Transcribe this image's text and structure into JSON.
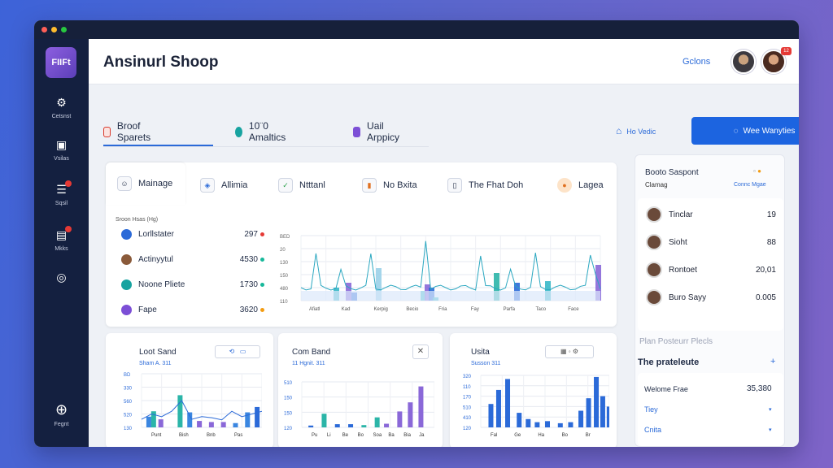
{
  "app": {
    "logo": "FIIFt",
    "title": "Ansinurl Shoop",
    "header_option": "Gclons",
    "avatar_badge": "12"
  },
  "sidebar": [
    {
      "icon": "gear-icon",
      "label": "Cetsnst"
    },
    {
      "icon": "box-icon",
      "label": "Vsilas"
    },
    {
      "icon": "list-icon",
      "label": "Sqsil"
    },
    {
      "icon": "doc-icon",
      "label": "Mkks"
    },
    {
      "icon": "globe-icon",
      "label": ""
    },
    {
      "icon": "support-icon",
      "label": "Fegnt"
    }
  ],
  "top_tabs": [
    {
      "label": "Broof Sparets",
      "color": "#d9392b"
    },
    {
      "label": "10¨0 Amaltics",
      "color": "#17a3a0"
    },
    {
      "label": "Uail Arppicy",
      "color": "#7c4fd6"
    }
  ],
  "top_link": "Ho Vedic",
  "cta_label": "Wee Wanyties",
  "sub_tabs": [
    "Mainage",
    "Allimia",
    "Ntttanl",
    "No Bxita",
    "The Fhat Doh",
    "Lagea"
  ],
  "overview": {
    "caption": "Sroon Hsas (Hg)",
    "items": [
      {
        "label": "Lorllstater",
        "value": "297",
        "dot": "#e53935"
      },
      {
        "label": "Actinyytul",
        "value": "4530",
        "dot": "#17b89a"
      },
      {
        "label": "Noone Pliete",
        "value": "1730",
        "dot": "#17b89a"
      },
      {
        "label": "Fape",
        "value": "3620",
        "dot": "#f39c12"
      }
    ],
    "chart": {
      "x_labels": [
        "Afiatl",
        "Kad",
        "Kerpig",
        "Becio",
        "Fria",
        "Fay",
        "Parfa",
        "Taco",
        "Face"
      ],
      "y_labels": [
        "BED",
        "20",
        "130",
        "150",
        "480",
        "110"
      ]
    }
  },
  "cards": [
    {
      "title": "Loot Sand",
      "sub": "Sham A. 311",
      "x_labels": [
        "Punt",
        "Bish",
        "Bnb",
        "Pas"
      ],
      "y_labels": [
        "BD",
        "330",
        "560",
        "520",
        "130"
      ]
    },
    {
      "title": "Com Band",
      "sub": "11 Hgnit. 311",
      "x_labels": [
        "Pu",
        "Li",
        "Be",
        "Bo",
        "Soa",
        "Ba",
        "Bia",
        "Ja"
      ],
      "y_labels": [
        "510",
        "150",
        "150",
        "120"
      ]
    },
    {
      "title": "Usita",
      "sub": "Susson 311",
      "x_labels": [
        "Fal",
        "Ge",
        "Ha",
        "Bo",
        "Br"
      ],
      "y_labels": [
        "320",
        "110",
        "170",
        "510",
        "410",
        "120"
      ]
    }
  ],
  "right": {
    "title": "Booto Saspont",
    "subtitle": "Clamag",
    "link": "Connc Mgae",
    "items": [
      {
        "name": "Tinclar",
        "value": "19"
      },
      {
        "name": "Sioht",
        "value": "88"
      },
      {
        "name": "Rontoet",
        "value": "20,01"
      },
      {
        "name": "Buro Sayy",
        "value": "0.005"
      }
    ],
    "section1": "Plan Posteurr Plecls",
    "section2": "The prateleute",
    "summary": {
      "label": "Welome Frae",
      "value": "35,380"
    },
    "options": [
      "Tiey",
      "Cnita"
    ]
  }
}
